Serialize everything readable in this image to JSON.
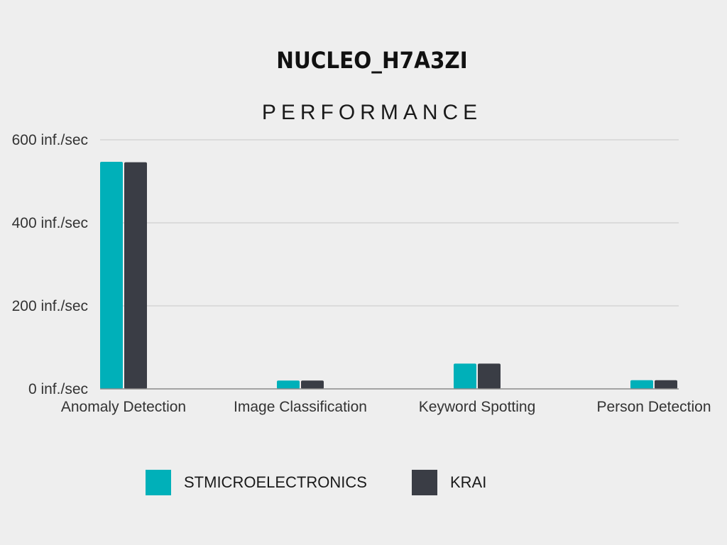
{
  "chart_data": {
    "type": "bar",
    "title": "NUCLEO_H7A3ZI",
    "subtitle": "PERFORMANCE",
    "categories": [
      "Anomaly Detection",
      "Image Classification",
      "Keyword Spotting",
      "Person Detection"
    ],
    "series": [
      {
        "name": "STMICROELECTRONICS",
        "color": "#00b0b9",
        "values": [
          547,
          20,
          61,
          21
        ]
      },
      {
        "name": "KRAI",
        "color": "#3a3d45",
        "values": [
          546,
          20,
          61,
          21
        ]
      }
    ],
    "yticks": [
      {
        "value": 0,
        "label": "0 inf./sec"
      },
      {
        "value": 200,
        "label": "200 inf./sec"
      },
      {
        "value": 400,
        "label": "400 inf./sec"
      },
      {
        "value": 600,
        "label": "600 inf./sec"
      }
    ],
    "ylim": [
      0,
      600
    ],
    "grid": true,
    "legend_position": "bottom"
  }
}
